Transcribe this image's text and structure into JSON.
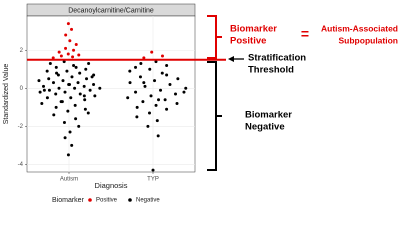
{
  "chart_data": {
    "type": "strip",
    "title": "Decanoylcarnitine/Carnitine",
    "x_label": "Diagnosis",
    "y_label": "Standardized Value",
    "categories": [
      "Autism",
      "TYP"
    ],
    "ylim": [
      -4.4,
      3.8
    ],
    "yticks": [
      -4,
      -2,
      0,
      2
    ],
    "grid": true,
    "threshold": 1.5,
    "threshold_color": "#e00000",
    "legend_title": "Biomarker",
    "legend_position": "bottom",
    "series": [
      {
        "name": "Positive",
        "color": "#e00000",
        "values": [
          [
            1.6,
            1.65,
            1.7,
            1.75,
            1.8,
            1.9,
            2.0,
            2.1,
            2.3,
            2.5,
            2.8,
            3.1,
            3.4
          ],
          [
            1.6,
            1.7,
            1.9
          ]
        ]
      },
      {
        "name": "Negative",
        "color": "#000000",
        "values": [
          [
            1.4,
            1.3,
            1.2,
            1.1,
            1.0,
            0.9,
            0.9,
            0.8,
            0.7,
            0.7,
            0.6,
            0.5,
            0.5,
            0.4,
            0.4,
            0.3,
            0.3,
            0.2,
            0.2,
            0.1,
            0.1,
            0.0,
            0.0,
            0.0,
            -0.1,
            -0.1,
            -0.2,
            -0.2,
            -0.3,
            -0.3,
            -0.4,
            -0.5,
            -0.5,
            -0.6,
            -0.7,
            -0.8,
            -0.9,
            -1.0,
            -1.1,
            -1.2,
            -1.4,
            -1.6,
            -1.8,
            -2.0,
            -2.3,
            -2.6,
            -3.0,
            -3.5,
            1.3,
            1.1,
            0.8,
            0.6,
            0.2,
            -0.1,
            -0.4,
            -0.7,
            -1.3
          ],
          [
            1.4,
            1.3,
            1.2,
            1.0,
            0.9,
            0.8,
            0.6,
            0.5,
            0.4,
            0.3,
            0.2,
            0.1,
            0.0,
            -0.1,
            -0.2,
            -0.3,
            -0.4,
            -0.5,
            -0.6,
            -0.7,
            -0.8,
            -0.9,
            -1.0,
            -1.1,
            -1.3,
            -1.5,
            -1.7,
            -2.0,
            -2.5,
            -4.3,
            1.1,
            0.7,
            0.3,
            -0.2,
            -0.6
          ]
        ]
      }
    ],
    "annotations": {
      "positive": [
        "Biomarker",
        "Positive"
      ],
      "equals": "=",
      "subpopulation": [
        "Autism-Associated",
        "Subpopulation"
      ],
      "threshold": [
        "Stratification",
        "Threshold"
      ],
      "negative": [
        "Biomarker",
        "Negative"
      ]
    }
  }
}
